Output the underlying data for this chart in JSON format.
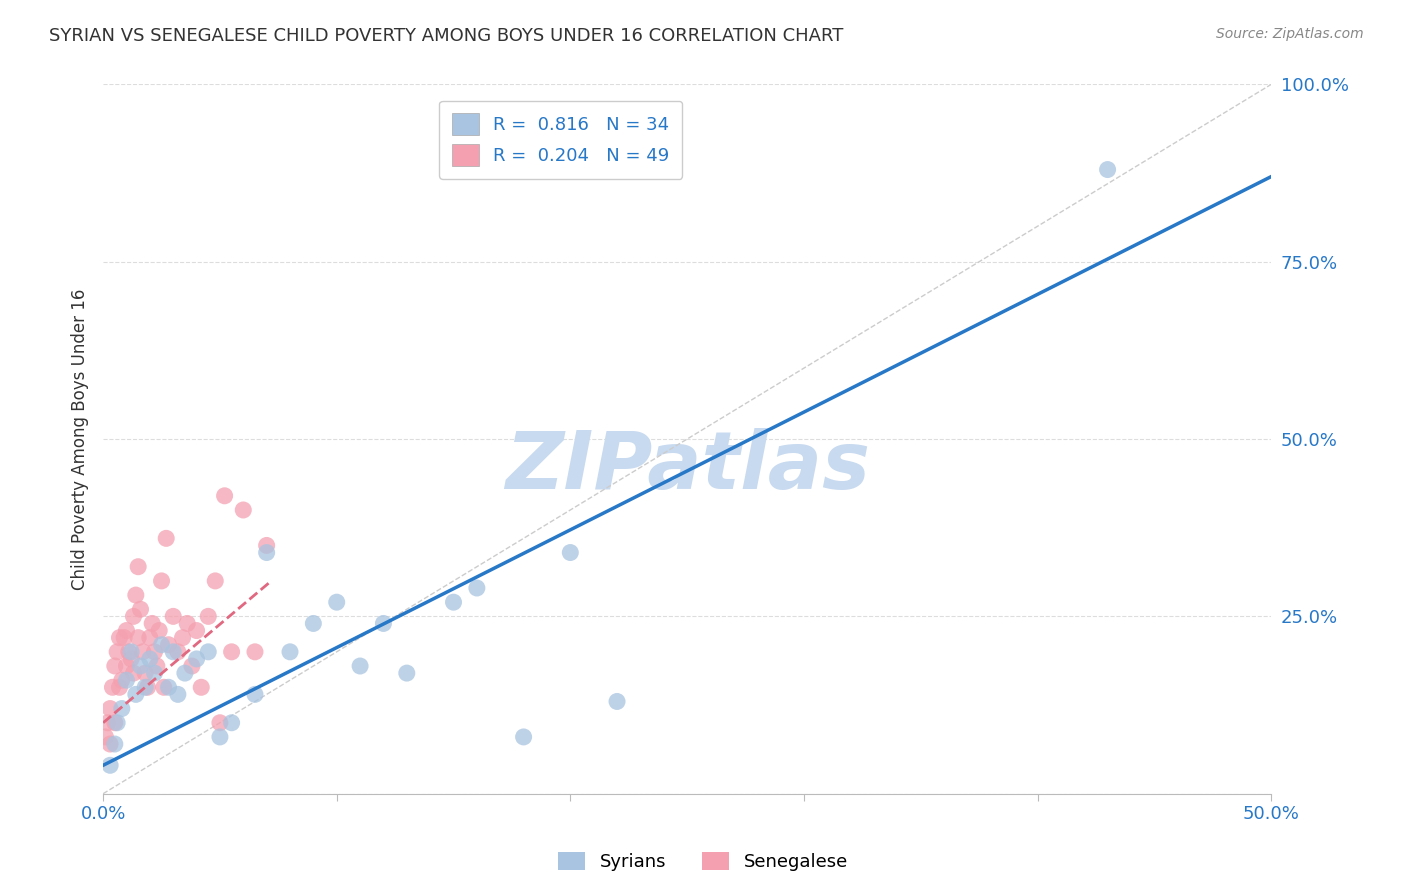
{
  "title": "SYRIAN VS SENEGALESE CHILD POVERTY AMONG BOYS UNDER 16 CORRELATION CHART",
  "source": "Source: ZipAtlas.com",
  "ylabel": "Child Poverty Among Boys Under 16",
  "xlim": [
    0.0,
    0.5
  ],
  "ylim": [
    0.0,
    1.0
  ],
  "xticks": [
    0.0,
    0.1,
    0.2,
    0.3,
    0.4,
    0.5
  ],
  "yticks": [
    0.0,
    0.25,
    0.5,
    0.75,
    1.0
  ],
  "syrians_R": 0.816,
  "syrians_N": 34,
  "senegalese_R": 0.204,
  "senegalese_N": 49,
  "syrians_color": "#a8c4e0",
  "senegalese_color": "#f4a0b0",
  "syrians_line_color": "#2878c8",
  "senegalese_line_color": "#e06880",
  "diag_color": "#cccccc",
  "watermark_color": "#c8daf0",
  "watermark_text": "ZIPatlas",
  "grid_color": "#dddddd",
  "syrians_x": [
    0.003,
    0.005,
    0.006,
    0.008,
    0.01,
    0.012,
    0.014,
    0.016,
    0.018,
    0.02,
    0.022,
    0.025,
    0.028,
    0.03,
    0.032,
    0.035,
    0.04,
    0.045,
    0.05,
    0.055,
    0.065,
    0.07,
    0.08,
    0.09,
    0.1,
    0.11,
    0.12,
    0.13,
    0.15,
    0.16,
    0.18,
    0.2,
    0.22,
    0.43
  ],
  "syrians_y": [
    0.04,
    0.07,
    0.1,
    0.12,
    0.16,
    0.2,
    0.14,
    0.18,
    0.15,
    0.19,
    0.17,
    0.21,
    0.15,
    0.2,
    0.14,
    0.17,
    0.19,
    0.2,
    0.08,
    0.1,
    0.14,
    0.34,
    0.2,
    0.24,
    0.27,
    0.18,
    0.24,
    0.17,
    0.27,
    0.29,
    0.08,
    0.34,
    0.13,
    0.88
  ],
  "senegalese_x": [
    0.001,
    0.002,
    0.003,
    0.003,
    0.004,
    0.005,
    0.005,
    0.006,
    0.007,
    0.007,
    0.008,
    0.009,
    0.01,
    0.01,
    0.011,
    0.012,
    0.013,
    0.013,
    0.014,
    0.015,
    0.015,
    0.016,
    0.017,
    0.018,
    0.019,
    0.02,
    0.021,
    0.022,
    0.023,
    0.024,
    0.025,
    0.026,
    0.027,
    0.028,
    0.03,
    0.032,
    0.034,
    0.036,
    0.038,
    0.04,
    0.042,
    0.045,
    0.048,
    0.05,
    0.052,
    0.055,
    0.06,
    0.065,
    0.07
  ],
  "senegalese_y": [
    0.08,
    0.1,
    0.12,
    0.07,
    0.15,
    0.18,
    0.1,
    0.2,
    0.15,
    0.22,
    0.16,
    0.22,
    0.23,
    0.18,
    0.2,
    0.19,
    0.25,
    0.17,
    0.28,
    0.32,
    0.22,
    0.26,
    0.2,
    0.17,
    0.15,
    0.22,
    0.24,
    0.2,
    0.18,
    0.23,
    0.3,
    0.15,
    0.36,
    0.21,
    0.25,
    0.2,
    0.22,
    0.24,
    0.18,
    0.23,
    0.15,
    0.25,
    0.3,
    0.1,
    0.42,
    0.2,
    0.4,
    0.2,
    0.35
  ],
  "syrians_line_x": [
    0.0,
    0.5
  ],
  "syrians_line_y": [
    0.04,
    0.87
  ],
  "senegalese_line_x": [
    0.0,
    0.072
  ],
  "senegalese_line_y": [
    0.1,
    0.3
  ]
}
